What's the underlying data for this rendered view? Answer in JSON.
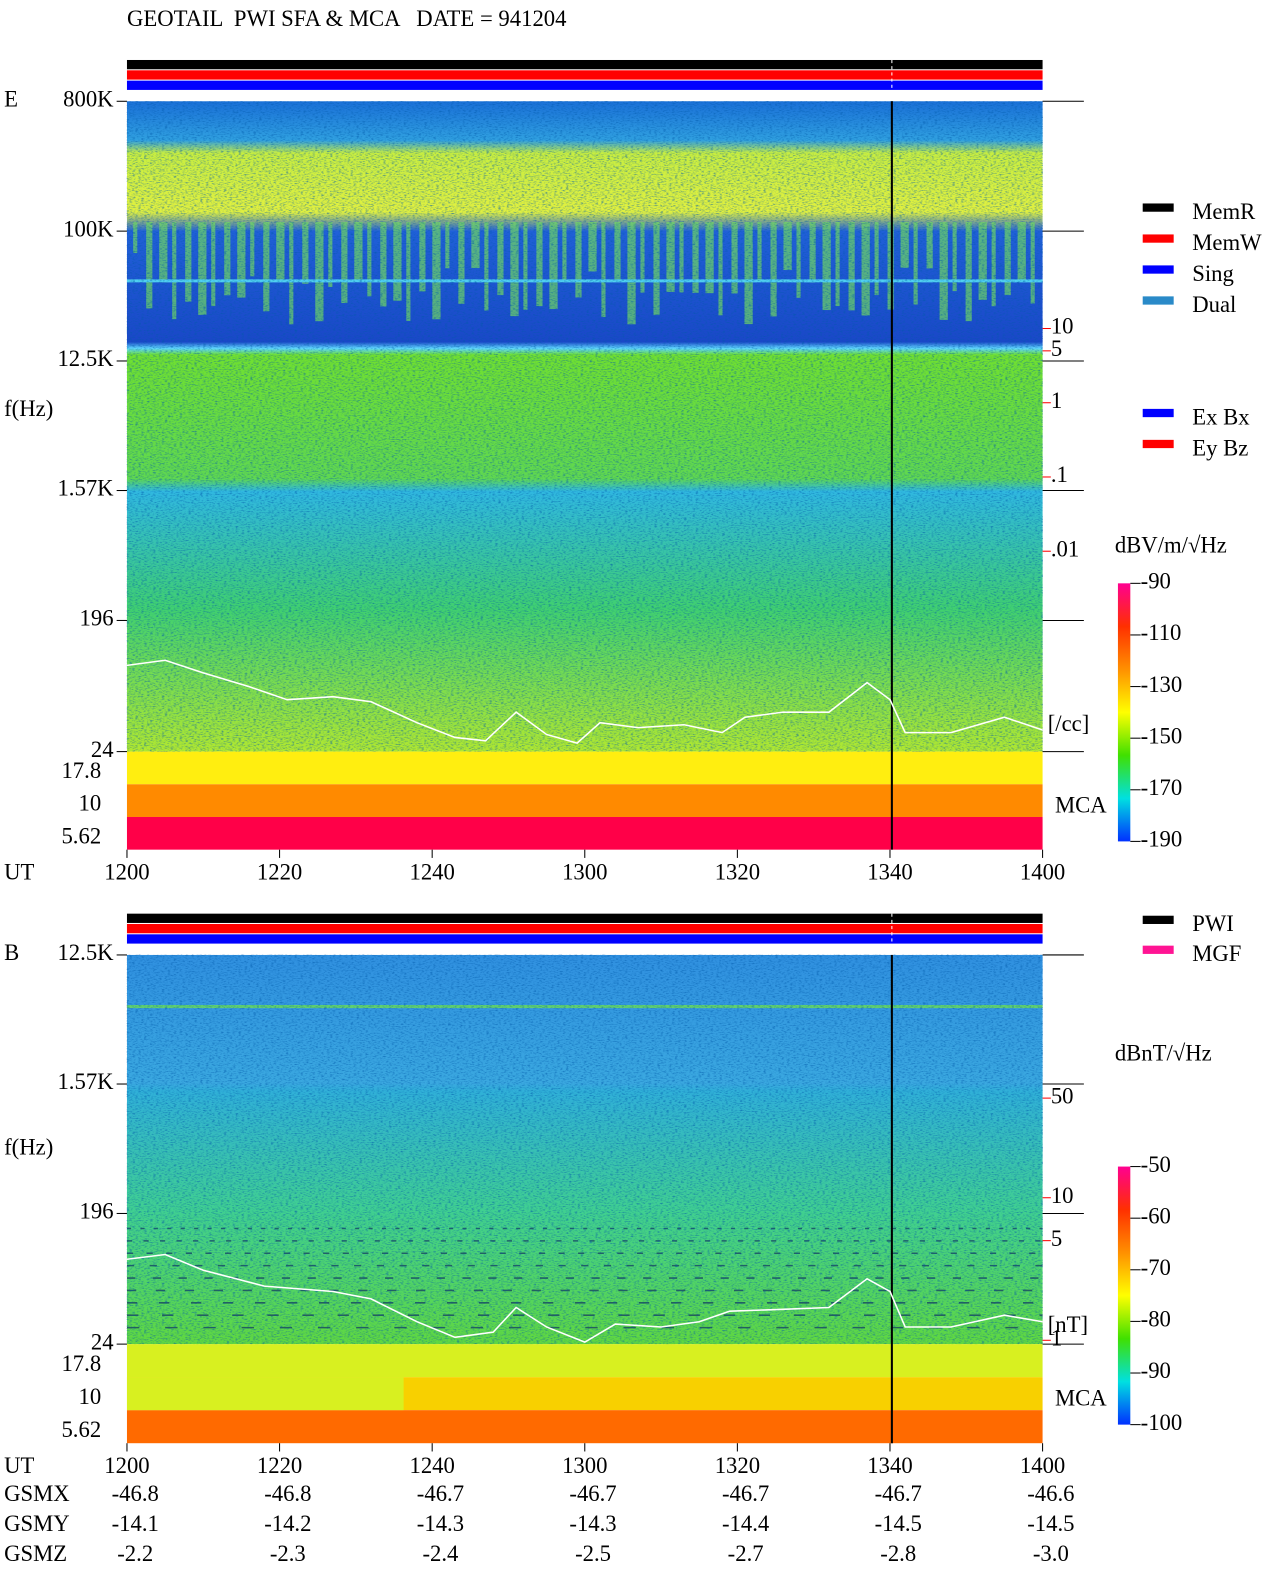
{
  "title": "GEOTAIL  PWI SFA & MCA   DATE = 941204",
  "chart_data": [
    {
      "type": "spectrogram",
      "panel_label": "E",
      "ylabel": "f(Hz)",
      "xlabel": "UT",
      "xlim": [
        720,
        840
      ],
      "xticks": [
        {
          "value": 720,
          "label": "1200"
        },
        {
          "value": 740,
          "label": "1220"
        },
        {
          "value": 760,
          "label": "1240"
        },
        {
          "value": 780,
          "label": "1300"
        },
        {
          "value": 800,
          "label": "1320"
        },
        {
          "value": 820,
          "label": "1340"
        },
        {
          "value": 840,
          "label": "1400"
        }
      ],
      "yscale": "log",
      "ylim": [
        24,
        800000
      ],
      "yticks": [
        {
          "value": 800000,
          "label": "800K"
        },
        {
          "value": 100000,
          "label": "100K"
        },
        {
          "value": 12500,
          "label": "12.5K"
        },
        {
          "value": 1570,
          "label": "1.57K"
        },
        196,
        24
      ],
      "mca_label": "MCA",
      "mca_channels": [
        17.8,
        10,
        5.62
      ],
      "y2scale": "log",
      "y2lim": [
        2e-05,
        11500
      ],
      "y2color": "#ff0000",
      "y2ticks": [
        10,
        5,
        1,
        {
          "value": 0.1,
          "label": ".1"
        },
        {
          "value": 0.01,
          "label": ".01"
        }
      ],
      "y2label": "[/cc]",
      "x": [
        720,
        725,
        730,
        736,
        741,
        747,
        752,
        758,
        763,
        767,
        771,
        775,
        779,
        782,
        787,
        793,
        798,
        801,
        806,
        812,
        817,
        820,
        822,
        828,
        835,
        840
      ],
      "series": [
        {
          "color": "#ffffff",
          "axis": "y2",
          "values": [
            0.00029,
            0.00034,
            0.00023,
            0.00015,
            0.0001,
            0.00011,
            9.4e-05,
            4.9e-05,
            3.1e-05,
            2.8e-05,
            6.8e-05,
            3.4e-05,
            2.6e-05,
            4.9e-05,
            4.2e-05,
            4.6e-05,
            3.6e-05,
            5.8e-05,
            6.8e-05,
            6.8e-05,
            0.00017,
            0.0001,
            3.6e-05,
            3.6e-05,
            5.8e-05,
            3.9e-05
          ]
        }
      ],
      "colorbar": {
        "label": "dBV/m/√Hz",
        "lim": [
          -190,
          -90
        ],
        "ticks": [
          -90,
          -110,
          -130,
          -150,
          -170,
          -190
        ],
        "colors": [
          "#ff0090",
          "#ff3000",
          "#ff9000",
          "#ffff00",
          "#40e000",
          "#00e0e0",
          "#0030ff"
        ]
      },
      "legend": [
        [
          {
            "name": "MemR",
            "color": "#000000"
          },
          {
            "name": "MemW",
            "color": "#ff0000"
          },
          {
            "name": "Sing",
            "color": "#0000ff"
          },
          {
            "name": "Dual",
            "color": "#2a8ac8"
          }
        ],
        [
          {
            "name": "Ex Bx",
            "color": "#0000ff"
          },
          {
            "name": "Ey Bz",
            "color": "#ff0000"
          }
        ]
      ]
    },
    {
      "type": "spectrogram",
      "panel_label": "B",
      "ylabel": "f(Hz)",
      "xlabel": "UT",
      "xlim": [
        720,
        840
      ],
      "xticks": [
        {
          "value": 720,
          "label": "1200"
        },
        {
          "value": 740,
          "label": "1220"
        },
        {
          "value": 760,
          "label": "1240"
        },
        {
          "value": 780,
          "label": "1300"
        },
        {
          "value": 800,
          "label": "1320"
        },
        {
          "value": 820,
          "label": "1340"
        },
        {
          "value": 840,
          "label": "1400"
        }
      ],
      "yscale": "log",
      "ylim": [
        24,
        12500
      ],
      "yticks": [
        {
          "value": 12500,
          "label": "12.5K"
        },
        {
          "value": 1570,
          "label": "1.57K"
        },
        196,
        24
      ],
      "mca_label": "MCA",
      "mca_channels": [
        17.8,
        10,
        5.62
      ],
      "y2scale": "log",
      "y2lim": [
        0.94,
        505
      ],
      "y2color": "#ff0000",
      "y2ticks": [
        50,
        10,
        5,
        1
      ],
      "y2label": "[nT]",
      "x": [
        720,
        725,
        730,
        738,
        747,
        752,
        758,
        763,
        768,
        771,
        775,
        780,
        784,
        790,
        795,
        799,
        806,
        812,
        817,
        820,
        822,
        828,
        835,
        840
      ],
      "series": [
        {
          "color": "#ffffff",
          "axis": "y2",
          "values": [
            3.7,
            4.0,
            3.1,
            2.4,
            2.2,
            1.95,
            1.35,
            1.05,
            1.14,
            1.7,
            1.24,
            0.97,
            1.3,
            1.24,
            1.35,
            1.6,
            1.65,
            1.7,
            2.7,
            2.2,
            1.24,
            1.24,
            1.5,
            1.35
          ]
        }
      ],
      "colorbar": {
        "label": "dBnT/√Hz",
        "lim": [
          -100,
          -50
        ],
        "ticks": [
          -50,
          -60,
          -70,
          -80,
          -90,
          -100
        ],
        "colors": [
          "#ff0090",
          "#ff3000",
          "#ff9000",
          "#ffff00",
          "#40e000",
          "#00e0e0",
          "#0030ff"
        ]
      },
      "legend": [
        [
          {
            "name": "PWI",
            "color": "#000000"
          },
          {
            "name": "MGF",
            "color": "#ff1493"
          }
        ]
      ]
    }
  ],
  "orbit": {
    "rows": [
      {
        "name": "GSMX",
        "values": [
          "-46.8",
          "-46.8",
          "-46.7",
          "-46.7",
          "-46.7",
          "-46.7",
          "-46.6"
        ]
      },
      {
        "name": "GSMY",
        "values": [
          "-14.1",
          "-14.2",
          "-14.3",
          "-14.3",
          "-14.4",
          "-14.5",
          "-14.5"
        ]
      },
      {
        "name": "GSMZ",
        "values": [
          "-2.2",
          "-2.3",
          "-2.4",
          "-2.5",
          "-2.7",
          "-2.8",
          "-3.0"
        ]
      }
    ]
  }
}
